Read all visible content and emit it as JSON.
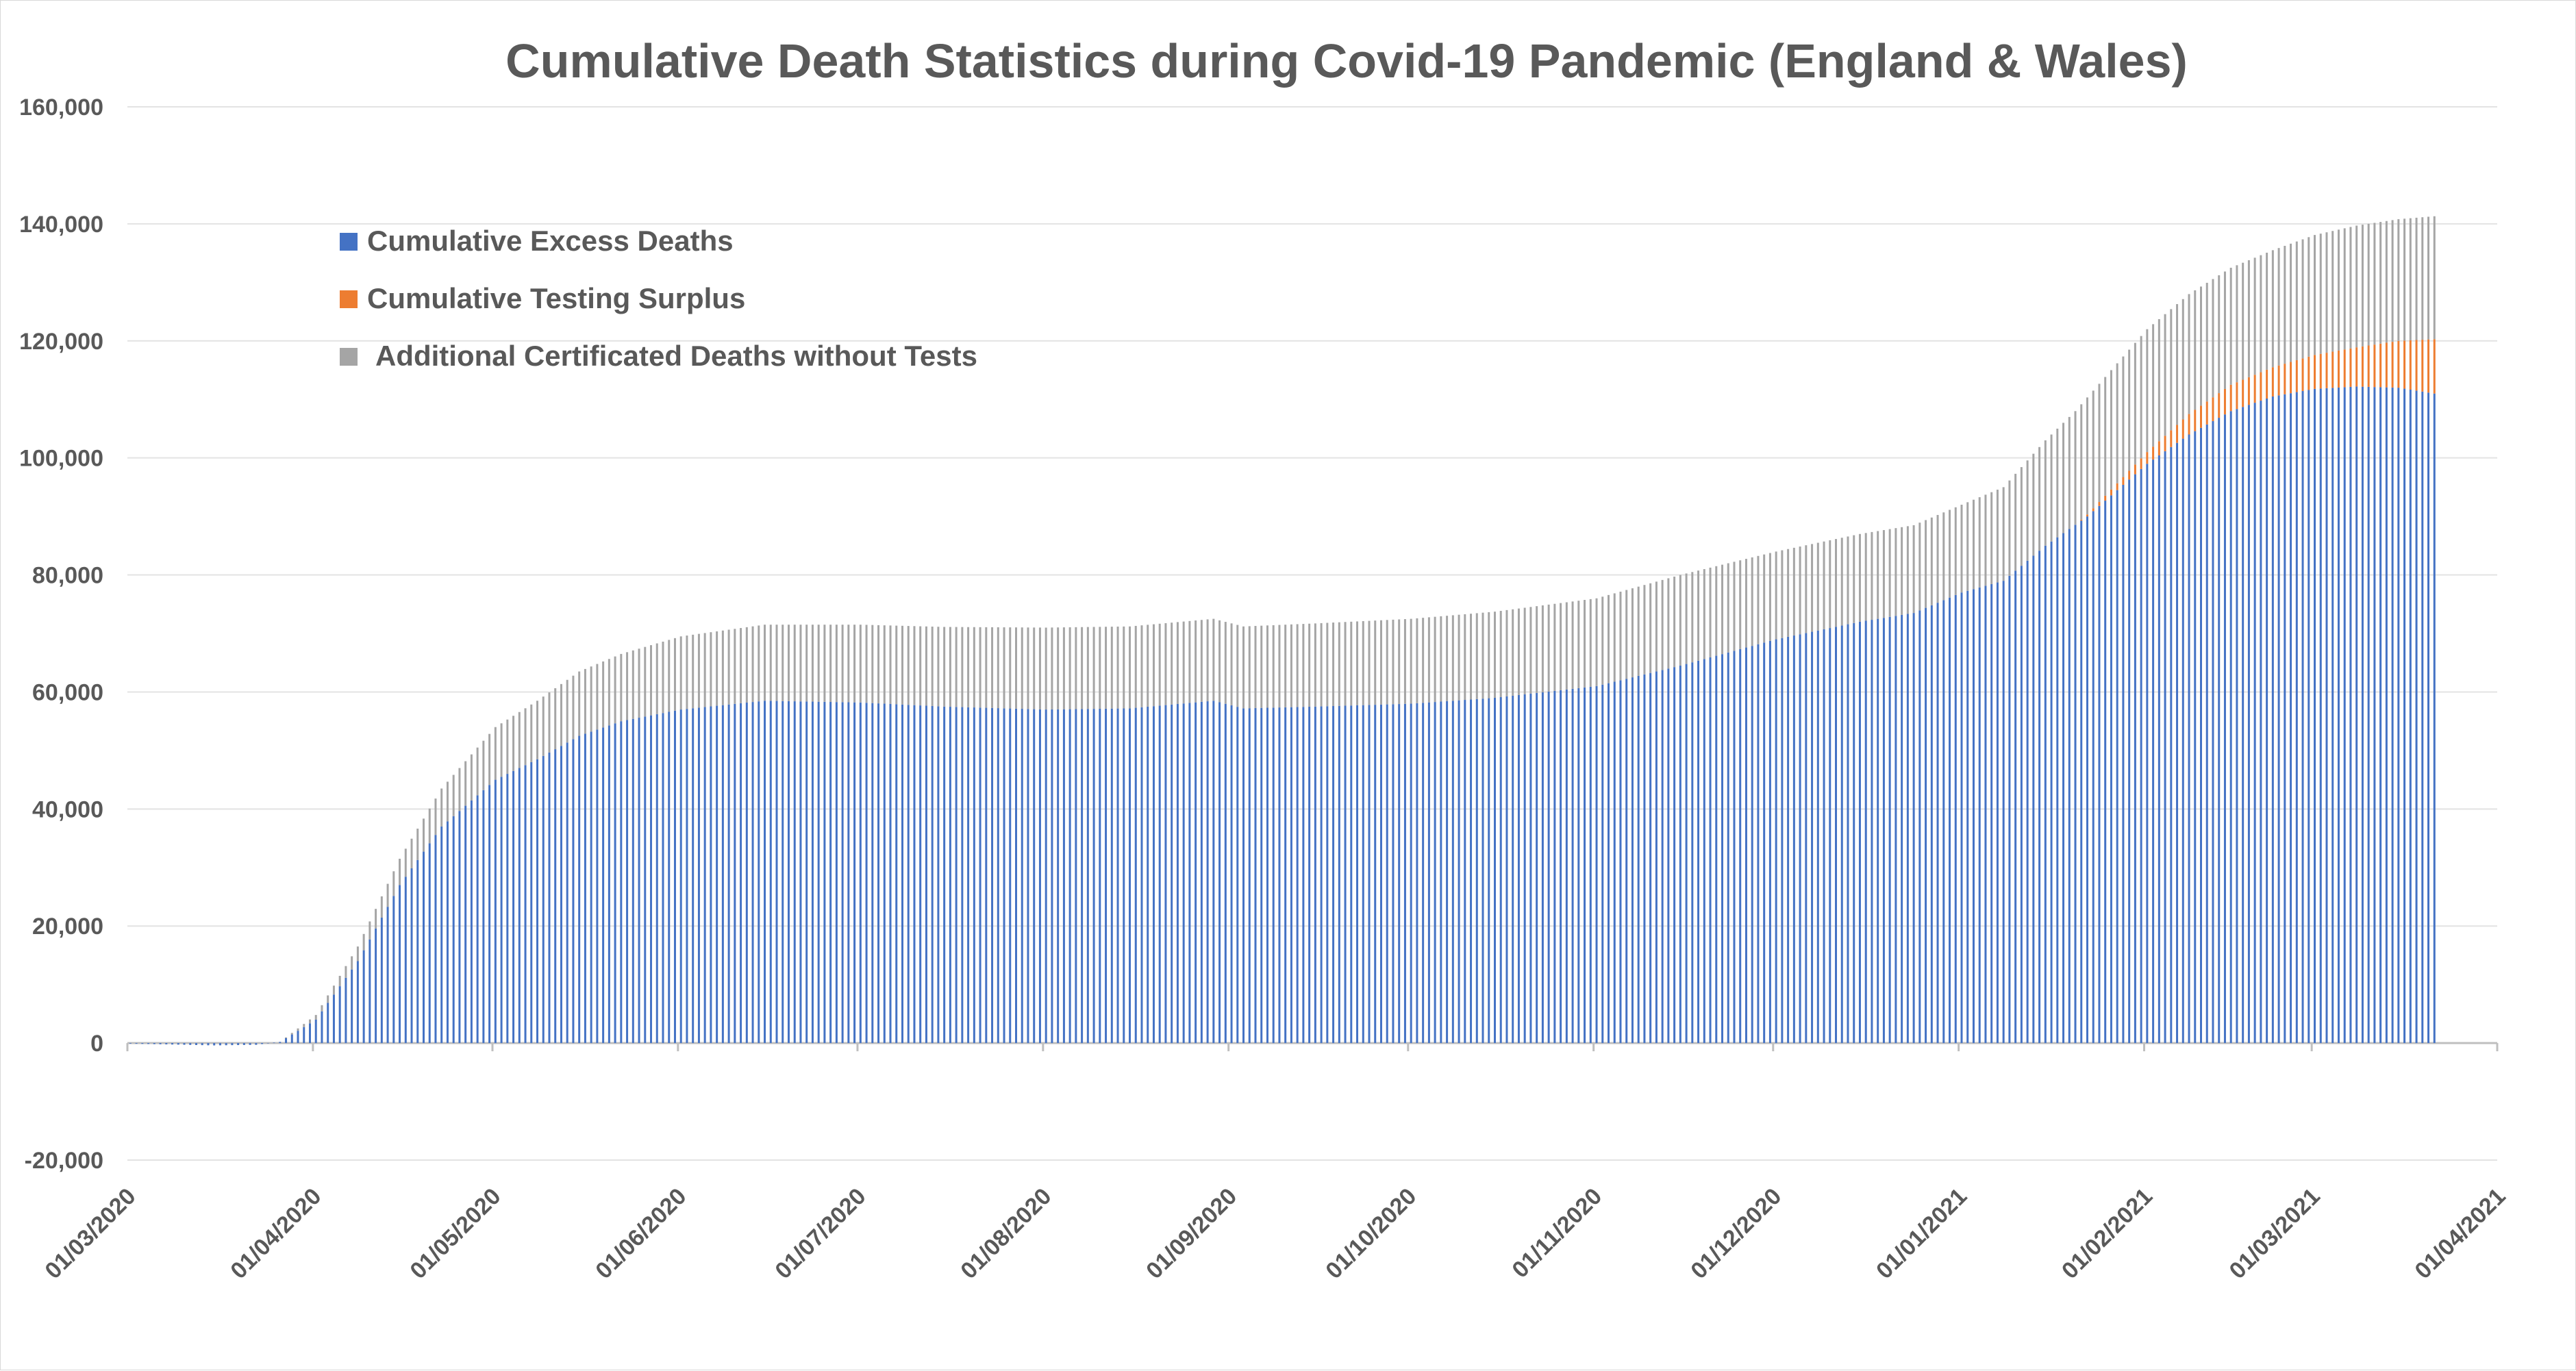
{
  "chart_data": {
    "type": "bar",
    "stacked": true,
    "title": "Cumulative Death Statistics during Covid-19 Pandemic (England & Wales)",
    "xlabel": "",
    "ylabel": "",
    "ylim": [
      -20000,
      160000
    ],
    "y_ticks": [
      -20000,
      0,
      20000,
      40000,
      60000,
      80000,
      100000,
      120000,
      140000,
      160000
    ],
    "y_tick_labels": [
      "-20,000",
      "0",
      "20,000",
      "40,000",
      "60,000",
      "80,000",
      "100,000",
      "120,000",
      "140,000",
      "160,000"
    ],
    "x_tick_labels": [
      "01/03/2020",
      "01/04/2020",
      "01/05/2020",
      "01/06/2020",
      "01/07/2020",
      "01/08/2020",
      "01/09/2020",
      "01/10/2020",
      "01/11/2020",
      "01/12/2020",
      "01/01/2021",
      "01/02/2021",
      "01/03/2021",
      "01/04/2021"
    ],
    "x_range": [
      "01/03/2020",
      "01/04/2021"
    ],
    "grid": true,
    "legend_position": "upper-left",
    "series": [
      {
        "name": "Cumulative Excess Deaths",
        "color": "#4472C4",
        "points": [
          [
            "01/03/2020",
            -100
          ],
          [
            "15/03/2020",
            -400
          ],
          [
            "22/03/2020",
            -300
          ],
          [
            "26/03/2020",
            200
          ],
          [
            "01/04/2020",
            4000
          ],
          [
            "08/04/2020",
            14000
          ],
          [
            "15/04/2020",
            27000
          ],
          [
            "22/04/2020",
            37000
          ],
          [
            "01/05/2020",
            45000
          ],
          [
            "08/05/2020",
            48500
          ],
          [
            "15/05/2020",
            52500
          ],
          [
            "22/05/2020",
            55000
          ],
          [
            "01/06/2020",
            57000
          ],
          [
            "15/06/2020",
            58500
          ],
          [
            "01/07/2020",
            58200
          ],
          [
            "15/07/2020",
            57500
          ],
          [
            "01/08/2020",
            57000
          ],
          [
            "15/08/2020",
            57200
          ],
          [
            "29/08/2020",
            58500
          ],
          [
            "03/09/2020",
            57200
          ],
          [
            "15/09/2020",
            57500
          ],
          [
            "01/10/2020",
            58000
          ],
          [
            "15/10/2020",
            59000
          ],
          [
            "01/11/2020",
            61000
          ],
          [
            "15/11/2020",
            64500
          ],
          [
            "01/12/2020",
            69000
          ],
          [
            "15/12/2020",
            72000
          ],
          [
            "24/12/2020",
            73500
          ],
          [
            "01/01/2021",
            77000
          ],
          [
            "08/01/2021",
            79000
          ],
          [
            "15/01/2021",
            85000
          ],
          [
            "22/01/2021",
            90000
          ],
          [
            "01/02/2021",
            99000
          ],
          [
            "08/02/2021",
            104000
          ],
          [
            "15/02/2021",
            108000
          ],
          [
            "22/02/2021",
            110500
          ],
          [
            "01/03/2021",
            111800
          ],
          [
            "08/03/2021",
            112200
          ],
          [
            "15/03/2021",
            112000
          ],
          [
            "21/03/2021",
            111000
          ]
        ]
      },
      {
        "name": "Cumulative Testing Surplus",
        "color": "#ED7D31",
        "points": [
          [
            "01/03/2020",
            0
          ],
          [
            "20/01/2021",
            0
          ],
          [
            "01/02/2021",
            2000
          ],
          [
            "08/02/2021",
            3500
          ],
          [
            "15/02/2021",
            4500
          ],
          [
            "22/02/2021",
            5000
          ],
          [
            "01/03/2021",
            5800
          ],
          [
            "08/03/2021",
            6700
          ],
          [
            "15/03/2021",
            8000
          ],
          [
            "21/03/2021",
            9300
          ]
        ]
      },
      {
        "name": "Additional Certificated Deaths without Tests",
        "color": "#A5A5A5",
        "points": [
          [
            "01/03/2020",
            0
          ],
          [
            "26/03/2020",
            0
          ],
          [
            "01/04/2020",
            800
          ],
          [
            "08/04/2020",
            2500
          ],
          [
            "15/04/2020",
            4500
          ],
          [
            "22/04/2020",
            6500
          ],
          [
            "01/05/2020",
            9000
          ],
          [
            "08/05/2020",
            10000
          ],
          [
            "15/05/2020",
            11000
          ],
          [
            "22/05/2020",
            11500
          ],
          [
            "01/06/2020",
            12500
          ],
          [
            "15/06/2020",
            13000
          ],
          [
            "01/07/2020",
            13300
          ],
          [
            "01/08/2020",
            14000
          ],
          [
            "29/08/2020",
            14000
          ],
          [
            "03/09/2020",
            14000
          ],
          [
            "01/10/2020",
            14500
          ],
          [
            "01/11/2020",
            15000
          ],
          [
            "15/11/2020",
            15500
          ],
          [
            "01/12/2020",
            15000
          ],
          [
            "24/12/2020",
            15000
          ],
          [
            "01/01/2021",
            15000
          ],
          [
            "08/01/2021",
            16000
          ],
          [
            "15/01/2021",
            18000
          ],
          [
            "22/01/2021",
            20000
          ],
          [
            "01/02/2021",
            21000
          ],
          [
            "08/02/2021",
            20500
          ],
          [
            "15/02/2021",
            20000
          ],
          [
            "22/02/2021",
            20000
          ],
          [
            "01/03/2021",
            20500
          ],
          [
            "08/03/2021",
            20800
          ],
          [
            "15/03/2021",
            20800
          ],
          [
            "21/03/2021",
            21000
          ]
        ]
      }
    ]
  }
}
